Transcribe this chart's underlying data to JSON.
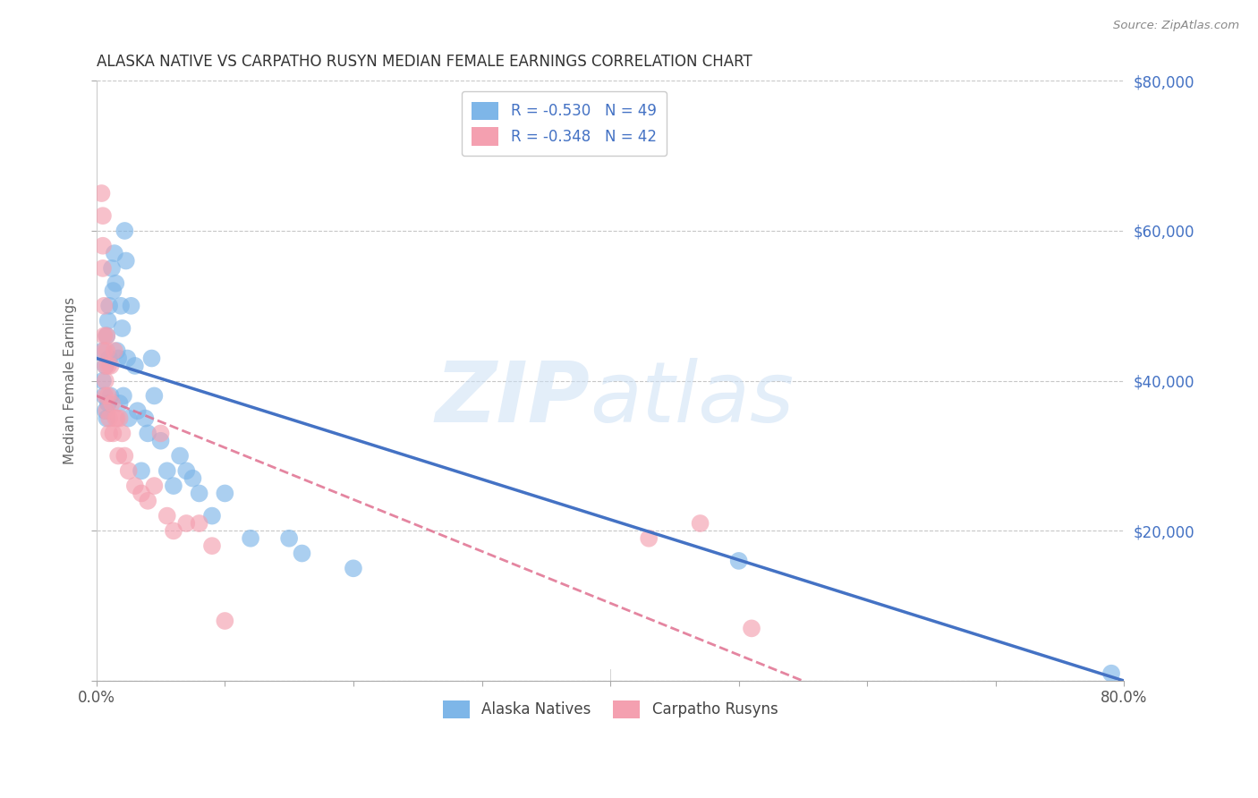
{
  "title": "ALASKA NATIVE VS CARPATHO RUSYN MEDIAN FEMALE EARNINGS CORRELATION CHART",
  "source": "Source: ZipAtlas.com",
  "ylabel": "Median Female Earnings",
  "xlim": [
    0.0,
    0.8
  ],
  "ylim": [
    0,
    80000
  ],
  "alaska_color": "#7EB6E8",
  "carpatho_color": "#F4A0B0",
  "alaska_line_color": "#4472C4",
  "carpatho_line_color": "#E07090",
  "alaska_x": [
    0.005,
    0.005,
    0.006,
    0.007,
    0.007,
    0.008,
    0.008,
    0.009,
    0.009,
    0.01,
    0.01,
    0.011,
    0.012,
    0.013,
    0.014,
    0.015,
    0.016,
    0.017,
    0.018,
    0.019,
    0.02,
    0.021,
    0.022,
    0.023,
    0.024,
    0.025,
    0.027,
    0.03,
    0.032,
    0.035,
    0.038,
    0.04,
    0.043,
    0.045,
    0.05,
    0.055,
    0.06,
    0.065,
    0.07,
    0.075,
    0.08,
    0.09,
    0.1,
    0.12,
    0.15,
    0.16,
    0.2,
    0.5,
    0.79
  ],
  "alaska_y": [
    44000,
    40000,
    38000,
    42000,
    36000,
    46000,
    35000,
    48000,
    37000,
    43000,
    50000,
    38000,
    55000,
    52000,
    57000,
    53000,
    44000,
    43000,
    37000,
    50000,
    47000,
    38000,
    60000,
    56000,
    43000,
    35000,
    50000,
    42000,
    36000,
    28000,
    35000,
    33000,
    43000,
    38000,
    32000,
    28000,
    26000,
    30000,
    28000,
    27000,
    25000,
    22000,
    25000,
    19000,
    19000,
    17000,
    15000,
    16000,
    1000
  ],
  "carpatho_x": [
    0.004,
    0.005,
    0.005,
    0.005,
    0.006,
    0.006,
    0.006,
    0.007,
    0.007,
    0.007,
    0.008,
    0.008,
    0.008,
    0.009,
    0.009,
    0.01,
    0.01,
    0.011,
    0.012,
    0.013,
    0.014,
    0.015,
    0.016,
    0.017,
    0.018,
    0.02,
    0.022,
    0.025,
    0.03,
    0.035,
    0.04,
    0.045,
    0.05,
    0.055,
    0.06,
    0.07,
    0.08,
    0.09,
    0.1,
    0.43,
    0.47,
    0.51
  ],
  "carpatho_y": [
    65000,
    62000,
    58000,
    55000,
    50000,
    46000,
    44000,
    42000,
    40000,
    38000,
    36000,
    46000,
    44000,
    42000,
    38000,
    35000,
    33000,
    42000,
    37000,
    33000,
    44000,
    35000,
    35000,
    30000,
    35000,
    33000,
    30000,
    28000,
    26000,
    25000,
    24000,
    26000,
    33000,
    22000,
    20000,
    21000,
    21000,
    18000,
    8000,
    19000,
    21000,
    7000
  ]
}
